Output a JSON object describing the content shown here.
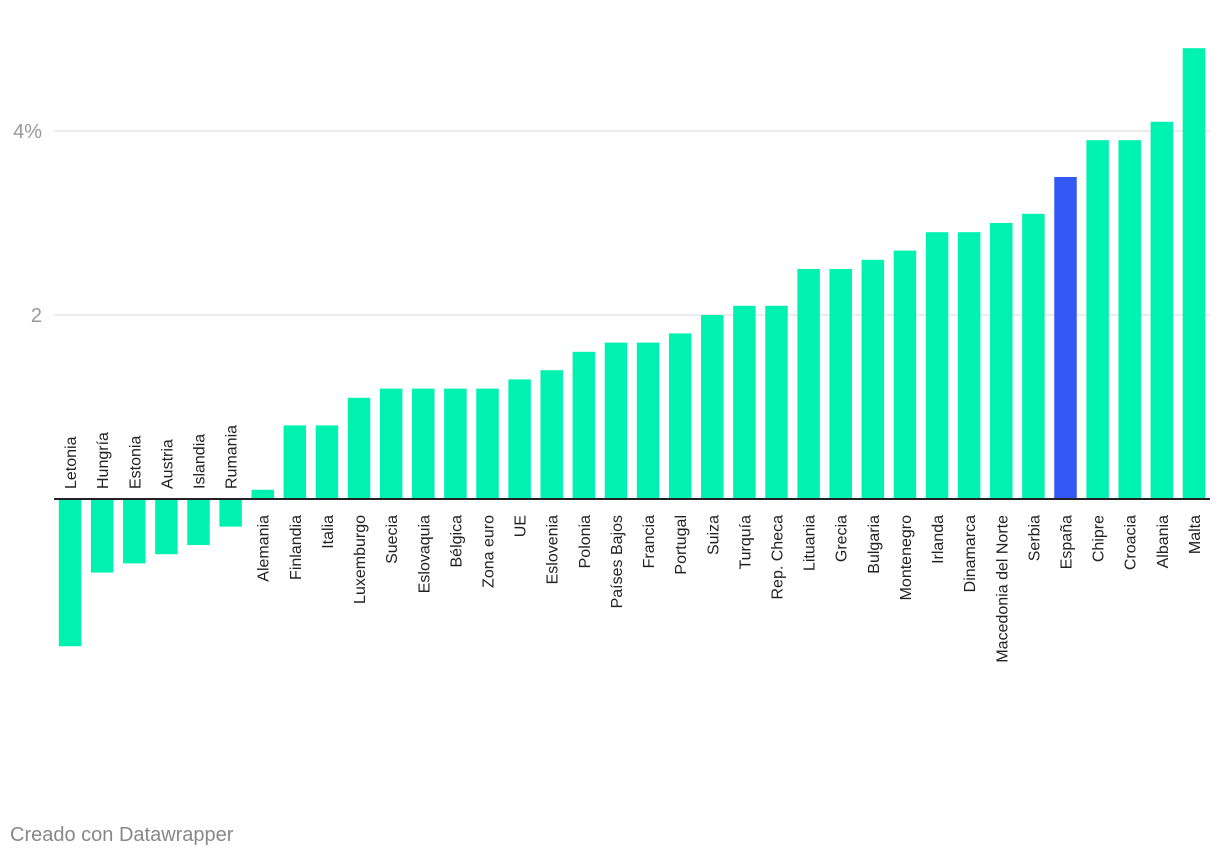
{
  "chart_data": {
    "type": "bar",
    "title": "",
    "xlabel": "",
    "ylabel": "",
    "ylim": [
      -1.8,
      4.9
    ],
    "yticks": [
      {
        "value": 2,
        "label": "2"
      },
      {
        "value": 4,
        "label": "4%"
      }
    ],
    "grid": true,
    "colors": {
      "default": "#00F2B0",
      "highlight": "#3358F4",
      "baseline": "#222222",
      "grid": "#E6E6E6"
    },
    "highlight_category": "España",
    "categories": [
      "Letonia",
      "Hungría",
      "Estonia",
      "Austria",
      "Islandia",
      "Rumania",
      "Alemania",
      "Finlandia",
      "Italia",
      "Luxemburgo",
      "Suecia",
      "Eslovaquia",
      "Bélgica",
      "Zona euro",
      "UE",
      "Eslovenia",
      "Polonia",
      "Países Bajos",
      "Francia",
      "Portugal",
      "Suiza",
      "Turquía",
      "Rep. Checa",
      "Lituania",
      "Grecia",
      "Bulgaria",
      "Montenegro",
      "Irlanda",
      "Dinamarca",
      "Macedonia del Norte",
      "Serbia",
      "España",
      "Chipre",
      "Croacia",
      "Albania",
      "Malta"
    ],
    "values": [
      -1.6,
      -0.8,
      -0.7,
      -0.6,
      -0.5,
      -0.3,
      0.1,
      0.8,
      0.8,
      1.1,
      1.2,
      1.2,
      1.2,
      1.2,
      1.3,
      1.4,
      1.6,
      1.7,
      1.7,
      1.8,
      2.0,
      2.1,
      2.1,
      2.5,
      2.5,
      2.6,
      2.7,
      2.9,
      2.9,
      3.0,
      3.1,
      3.5,
      3.9,
      3.9,
      4.1,
      4.9
    ]
  },
  "footer": {
    "credit": "Creado con Datawrapper"
  }
}
